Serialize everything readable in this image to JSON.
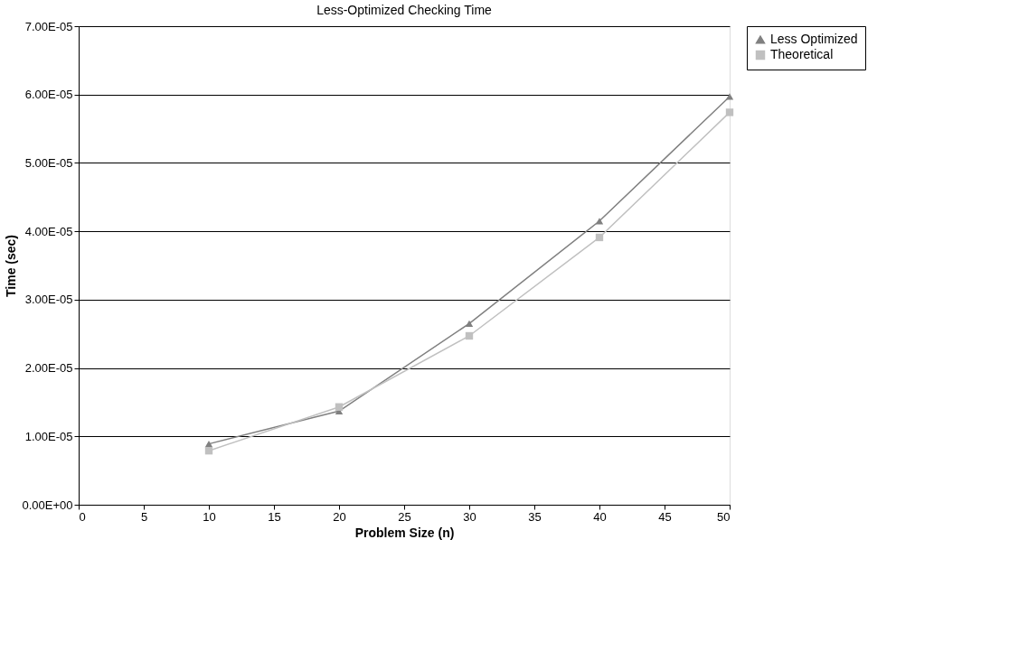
{
  "chart_data": {
    "type": "line",
    "title": "Less-Optimized Checking Time",
    "xlabel": "Problem Size (n)",
    "ylabel": "Time (sec)",
    "x": [
      10,
      20,
      30,
      40,
      50
    ],
    "series": [
      {
        "name": "Less Optimized",
        "color": "#808080",
        "marker": "triangle",
        "values": [
          8.9e-06,
          1.37e-05,
          2.65e-05,
          4.15e-05,
          5.97e-05
        ]
      },
      {
        "name": "Theoretical",
        "color": "#c0c0c0",
        "marker": "square",
        "values": [
          7.9e-06,
          1.43e-05,
          2.47e-05,
          3.91e-05,
          5.74e-05
        ]
      }
    ],
    "xlim": [
      0,
      50
    ],
    "xticks": [
      0,
      5,
      10,
      15,
      20,
      25,
      30,
      35,
      40,
      45,
      50
    ],
    "ylim": [
      0,
      7e-05
    ],
    "yticks": [
      {
        "value": 0,
        "label": "0.00E+00"
      },
      {
        "value": 1e-05,
        "label": "1.00E-05"
      },
      {
        "value": 2e-05,
        "label": "2.00E-05"
      },
      {
        "value": 3e-05,
        "label": "3.00E-05"
      },
      {
        "value": 4e-05,
        "label": "4.00E-05"
      },
      {
        "value": 5e-05,
        "label": "5.00E-05"
      },
      {
        "value": 6e-05,
        "label": "6.00E-05"
      },
      {
        "value": 7e-05,
        "label": "7.00E-05"
      }
    ],
    "grid": "y",
    "legend": "right",
    "line_style": "solid"
  }
}
